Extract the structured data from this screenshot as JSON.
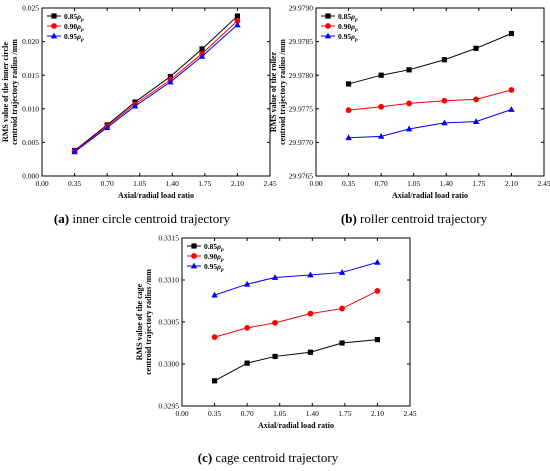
{
  "figure": {
    "legend_rho": "ρ",
    "legend_sub": "p"
  },
  "chart_data": [
    {
      "type": "line",
      "id": "a",
      "caption_letter": "(a)",
      "caption_text": " inner circle centroid trajectory",
      "xlabel": "Axial/radial load ratio",
      "ylabel_lines": [
        "RMS value of the inner circle",
        "centroid trajectory radius /mm"
      ],
      "xlim": [
        0.0,
        2.45
      ],
      "ylim": [
        0.0,
        0.025
      ],
      "xticks": [
        "0.00",
        "0.35",
        "0.70",
        "1.05",
        "1.40",
        "1.75",
        "2.10",
        "2.45"
      ],
      "yticks": [
        "0.000",
        "0.005",
        "0.010",
        "0.015",
        "0.020",
        "0.025"
      ],
      "legend_position": "top-left",
      "x": [
        0.35,
        0.7,
        1.0,
        1.38,
        1.72,
        2.1
      ],
      "series": [
        {
          "name": "0.85",
          "color": "#000000",
          "marker": "square",
          "values": [
            0.0038,
            0.0076,
            0.011,
            0.0148,
            0.0189,
            0.0238
          ]
        },
        {
          "name": "0.90",
          "color": "#ff0000",
          "marker": "circle",
          "values": [
            0.0037,
            0.0074,
            0.0107,
            0.0143,
            0.0182,
            0.0231
          ]
        },
        {
          "name": "0.95",
          "color": "#0000ff",
          "marker": "triangle",
          "values": [
            0.0036,
            0.0072,
            0.0104,
            0.014,
            0.0178,
            0.0225
          ]
        }
      ]
    },
    {
      "type": "line",
      "id": "b",
      "caption_letter": "(b)",
      "caption_text": " roller centroid trajectory",
      "xlabel": "Axial/radial load ratio",
      "ylabel_lines": [
        "RMS value of the roller",
        "centroid trajectory radius /mm"
      ],
      "xlim": [
        0.0,
        2.45
      ],
      "ylim": [
        29.9765,
        29.979
      ],
      "xticks": [
        "0.00",
        "0.35",
        "0.70",
        "1.05",
        "1.40",
        "1.75",
        "2.10",
        "2.45"
      ],
      "yticks": [
        "29.9765",
        "29.9770",
        "29.9775",
        "29.9780",
        "29.9785",
        "29.9790"
      ],
      "legend_position": "top-left",
      "x": [
        0.35,
        0.7,
        1.0,
        1.38,
        1.72,
        2.1
      ],
      "series": [
        {
          "name": "0.85",
          "color": "#000000",
          "marker": "square",
          "values": [
            29.97787,
            29.978,
            29.97808,
            29.97823,
            29.9784,
            29.97862
          ]
        },
        {
          "name": "0.90",
          "color": "#ff0000",
          "marker": "circle",
          "values": [
            29.97748,
            29.97753,
            29.97758,
            29.97762,
            29.97764,
            29.97778
          ]
        },
        {
          "name": "0.95",
          "color": "#0000ff",
          "marker": "triangle",
          "values": [
            29.97707,
            29.97709,
            29.9772,
            29.97729,
            29.97731,
            29.97749
          ]
        }
      ]
    },
    {
      "type": "line",
      "id": "c",
      "caption_letter": "(c)",
      "caption_text": " cage centroid trajectory",
      "xlabel": "Axial/radial load ratio",
      "ylabel_lines": [
        "RMS value of the cage",
        "centroid trajectory radius /mm"
      ],
      "xlim": [
        0.0,
        2.45
      ],
      "ylim": [
        0.3295,
        0.3315
      ],
      "xticks": [
        "0.00",
        "0.35",
        "0.70",
        "1.05",
        "1.40",
        "1.75",
        "2.10",
        "2.45"
      ],
      "yticks": [
        "0.3295",
        "0.3300",
        "0.3305",
        "0.3310",
        "0.3315"
      ],
      "legend_position": "top-left",
      "x": [
        0.35,
        0.7,
        1.0,
        1.38,
        1.72,
        2.1
      ],
      "series": [
        {
          "name": "0.85",
          "color": "#000000",
          "marker": "square",
          "values": [
            0.3298,
            0.33001,
            0.33009,
            0.33014,
            0.33025,
            0.33029
          ]
        },
        {
          "name": "0.90",
          "color": "#ff0000",
          "marker": "circle",
          "values": [
            0.33032,
            0.33043,
            0.33049,
            0.3306,
            0.33066,
            0.33087
          ]
        },
        {
          "name": "0.95",
          "color": "#0000ff",
          "marker": "triangle",
          "values": [
            0.33082,
            0.33095,
            0.33103,
            0.33106,
            0.33109,
            0.33121
          ]
        }
      ]
    }
  ]
}
